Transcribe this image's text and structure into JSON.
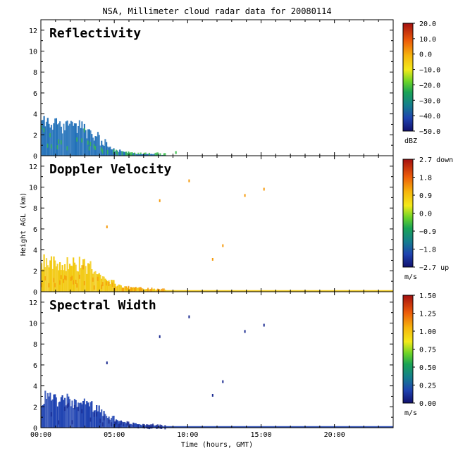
{
  "chart_data": {
    "type": "heatmap",
    "title": "NSA, Millimeter cloud radar data for 20080114",
    "xlabel": "Time (hours, GMT)",
    "ylabel": "Height AGL (km)",
    "xlim": [
      0,
      24
    ],
    "ylim": [
      0,
      13
    ],
    "x_ticks": [
      "00:00",
      "05:00",
      "10:00",
      "15:00",
      "20:00"
    ],
    "x_tick_values": [
      0,
      5,
      10,
      15,
      20
    ],
    "y_ticks": [
      "0",
      "2",
      "4",
      "6",
      "8",
      "10",
      "12"
    ],
    "y_tick_values": [
      0,
      2,
      4,
      6,
      8,
      10,
      12
    ],
    "panels": [
      {
        "name": "Reflectivity",
        "unit": "dBZ",
        "colorbar_ticks": [
          "20.0",
          "10.0",
          "0.0",
          "−10.0",
          "−20.0",
          "−30.0",
          "−40.0",
          "−50.0"
        ],
        "colorbar_range": [
          -50,
          20
        ],
        "cloud_top_km": [
          4.0,
          4.0,
          3.8,
          3.6,
          3.4,
          3.5,
          3.0,
          2.4,
          1.6,
          1.0,
          0.6,
          0.4,
          0.3,
          0.2,
          0.2,
          0.2,
          0.1
        ],
        "cloud_time_step_h": 0.5
      },
      {
        "name": "Doppler Velocity",
        "unit": "m/s",
        "colorbar_ticks": [
          "2.7 down",
          "1.8",
          "0.9",
          "0.0",
          "−0.9",
          "−1.8",
          "−2.7 up"
        ],
        "colorbar_range": [
          -2.7,
          2.7
        ],
        "cloud_top_km": [
          3.8,
          3.9,
          3.6,
          3.5,
          3.4,
          3.5,
          3.0,
          2.4,
          1.8,
          1.2,
          0.8,
          0.6,
          0.5,
          0.4,
          0.3,
          0.3,
          0.2
        ],
        "cloud_time_step_h": 0.5
      },
      {
        "name": "Spectral Width",
        "unit": "m/s",
        "colorbar_ticks": [
          "1.50",
          "1.25",
          "1.00",
          "0.75",
          "0.50",
          "0.25",
          "0.00"
        ],
        "colorbar_range": [
          0,
          1.5
        ],
        "cloud_top_km": [
          3.8,
          3.9,
          3.6,
          3.5,
          3.4,
          3.5,
          3.0,
          2.4,
          1.8,
          1.2,
          0.8,
          0.6,
          0.5,
          0.4,
          0.3,
          0.3,
          0.2
        ],
        "cloud_time_step_h": 0.5
      }
    ]
  },
  "colors": {
    "reflectivity_main": "#1f6fb8",
    "reflectivity_highlight": "#3bbf4a",
    "velocity_main": "#f2c80c",
    "velocity_highlight": "#f59a0a",
    "spectral_main": "#1a3fb0",
    "spectral_highlight": "#1a2a90"
  }
}
